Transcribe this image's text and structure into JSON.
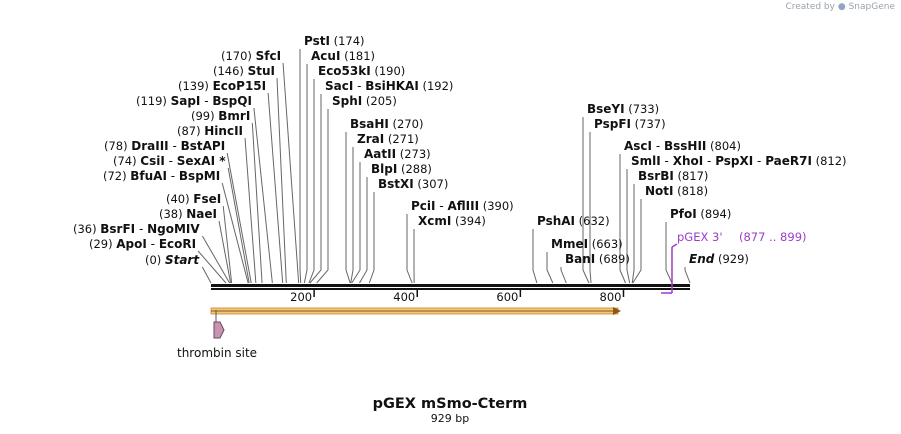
{
  "branding": {
    "created_by": "Created by",
    "product": "SnapGene"
  },
  "map": {
    "title": "pGEX mSmo-Cterm",
    "length_label": "929 bp",
    "total_bp": 929,
    "ticks": [
      {
        "bp": 200,
        "label": "200"
      },
      {
        "bp": 400,
        "label": "400"
      },
      {
        "bp": 600,
        "label": "600"
      },
      {
        "bp": 800,
        "label": "800"
      }
    ],
    "feature": {
      "name": "thrombin site"
    },
    "primer": {
      "name": "pGEX 3'",
      "range": "(877 .. 899)"
    }
  },
  "site_groups": [
    {
      "id": "g-start",
      "pos": "(0)",
      "names": [
        "Start"
      ],
      "style": "italic",
      "bp": 0
    },
    {
      "id": "g-apoi",
      "pos": "(29)",
      "names": [
        "ApoI",
        "EcoRI"
      ],
      "bp": 29
    },
    {
      "id": "g-bsrfi",
      "pos": "(36)",
      "names": [
        "BsrFI",
        "NgoMIV"
      ],
      "bp": 36
    },
    {
      "id": "g-naei",
      "pos": "(38)",
      "names": [
        "NaeI"
      ],
      "bp": 38
    },
    {
      "id": "g-fsei",
      "pos": "(40)",
      "names": [
        "FseI"
      ],
      "bp": 40
    },
    {
      "id": "g-bfuai",
      "pos": "(72)",
      "names": [
        "BfuAI",
        "BspMI"
      ],
      "bp": 72
    },
    {
      "id": "g-csii",
      "pos": "(74)",
      "names": [
        "CsiI",
        "SexAI *"
      ],
      "bp": 74
    },
    {
      "id": "g-draiii",
      "pos": "(78)",
      "names": [
        "DraIII",
        "BstAPI"
      ],
      "bp": 78
    },
    {
      "id": "g-hincii",
      "pos": "(87)",
      "names": [
        "HincII"
      ],
      "bp": 87
    },
    {
      "id": "g-bmri",
      "pos": "(99)",
      "names": [
        "BmrI"
      ],
      "bp": 99
    },
    {
      "id": "g-sapi",
      "pos": "(119)",
      "names": [
        "SapI",
        "BspQI"
      ],
      "bp": 119
    },
    {
      "id": "g-ecop15i",
      "pos": "(139)",
      "names": [
        "EcoP15I"
      ],
      "bp": 139
    },
    {
      "id": "g-stui",
      "pos": "(146)",
      "names": [
        "StuI"
      ],
      "bp": 146
    },
    {
      "id": "g-sfci",
      "pos": "(170)",
      "names": [
        "SfcI"
      ],
      "bp": 170
    },
    {
      "id": "g-psti",
      "pos": "(174)",
      "names": [
        "PstI"
      ],
      "bp": 174
    },
    {
      "id": "g-acui",
      "pos": "(181)",
      "names": [
        "AcuI"
      ],
      "bp": 181
    },
    {
      "id": "g-eco53ki",
      "pos": "(190)",
      "names": [
        "Eco53kI"
      ],
      "bp": 190
    },
    {
      "id": "g-saci",
      "pos": "(192)",
      "names": [
        "SacI",
        "BsiHKAI"
      ],
      "bp": 192
    },
    {
      "id": "g-sphi",
      "pos": "(205)",
      "names": [
        "SphI"
      ],
      "bp": 205
    },
    {
      "id": "g-bsahi",
      "pos": "(270)",
      "names": [
        "BsaHI"
      ],
      "bp": 270
    },
    {
      "id": "g-zrai",
      "pos": "(271)",
      "names": [
        "ZraI"
      ],
      "bp": 271
    },
    {
      "id": "g-aatii",
      "pos": "(273)",
      "names": [
        "AatII"
      ],
      "bp": 273
    },
    {
      "id": "g-blpi",
      "pos": "(288)",
      "names": [
        "BlpI"
      ],
      "bp": 288
    },
    {
      "id": "g-bstxi",
      "pos": "(307)",
      "names": [
        "BstXI"
      ],
      "bp": 307
    },
    {
      "id": "g-pcii",
      "pos": "(390)",
      "names": [
        "PciI",
        "AflIII"
      ],
      "bp": 390
    },
    {
      "id": "g-xcmi",
      "pos": "(394)",
      "names": [
        "XcmI"
      ],
      "bp": 394
    },
    {
      "id": "g-bseyi",
      "pos": "(733)",
      "names": [
        "BseYI"
      ],
      "bp": 733
    },
    {
      "id": "g-pspfi",
      "pos": "(737)",
      "names": [
        "PspFI"
      ],
      "bp": 737
    },
    {
      "id": "g-asci",
      "pos": "(804)",
      "names": [
        "AscI",
        "BssHII"
      ],
      "bp": 804
    },
    {
      "id": "g-smli",
      "pos": "(812)",
      "names": [
        "SmlI",
        "XhoI",
        "PspXI",
        "PaeR7I"
      ],
      "bp": 812
    },
    {
      "id": "g-bsrbi",
      "pos": "(817)",
      "names": [
        "BsrBI"
      ],
      "bp": 817
    },
    {
      "id": "g-noti",
      "pos": "(818)",
      "names": [
        "NotI"
      ],
      "bp": 818
    },
    {
      "id": "g-pfoi",
      "pos": "(894)",
      "names": [
        "PfoI"
      ],
      "bp": 894
    },
    {
      "id": "g-pshai",
      "pos": "(632)",
      "names": [
        "PshAI"
      ],
      "bp": 632
    },
    {
      "id": "g-mmei",
      "pos": "(663)",
      "names": [
        "MmeI"
      ],
      "bp": 663
    },
    {
      "id": "g-bani",
      "pos": "(689)",
      "names": [
        "BanI"
      ],
      "bp": 689
    },
    {
      "id": "g-end",
      "pos": "(929)",
      "names": [
        "End"
      ],
      "style": "italic",
      "bp": 929
    }
  ]
}
